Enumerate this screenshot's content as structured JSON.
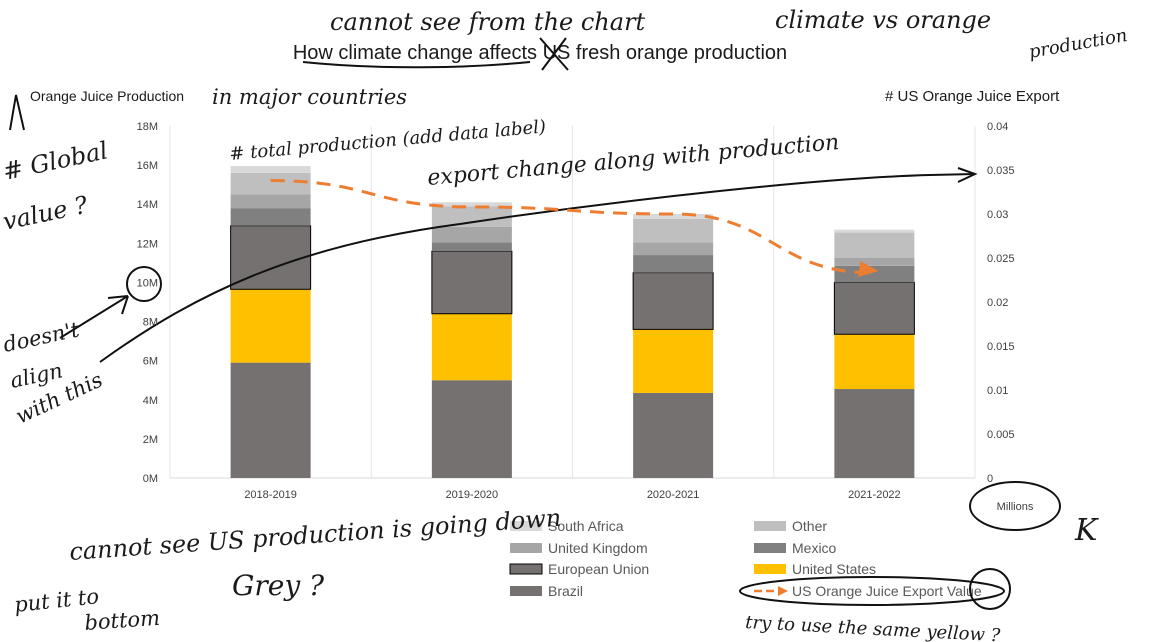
{
  "chart_data": {
    "type": "bar",
    "stacked": true,
    "title": "How climate change affects US fresh orange production",
    "y_left_title": "Orange Juice Production",
    "y_right_title": "# US Orange Juice Export",
    "y_right_unit": "Millions",
    "categories": [
      "2018-2019",
      "2019-2020",
      "2020-2021",
      "2021-2022"
    ],
    "ylim": [
      0,
      18
    ],
    "y2lim": [
      0,
      0.04
    ],
    "y_ticks": [
      "0M",
      "2M",
      "4M",
      "6M",
      "8M",
      "10M",
      "12M",
      "14M",
      "16M",
      "18M"
    ],
    "y2_ticks": [
      "0",
      "0.005",
      "0.01",
      "0.015",
      "0.02",
      "0.025",
      "0.03",
      "0.035",
      "0.04"
    ],
    "series": [
      {
        "name": "Brazil",
        "color": "#767171",
        "values": [
          5.9,
          5.0,
          4.35,
          4.55
        ]
      },
      {
        "name": "United States",
        "color": "#FFC000",
        "values": [
          3.75,
          3.4,
          3.25,
          2.8
        ]
      },
      {
        "name": "European Union",
        "color": "#767171",
        "outlined": true,
        "values": [
          3.25,
          3.2,
          2.9,
          2.65
        ]
      },
      {
        "name": "Mexico",
        "color": "#808080",
        "values": [
          0.9,
          0.45,
          0.9,
          0.85
        ]
      },
      {
        "name": "United Kingdom",
        "color": "#A6A6A6",
        "values": [
          0.7,
          0.8,
          0.65,
          0.4
        ]
      },
      {
        "name": "Other",
        "color": "#BFBFBF",
        "values": [
          1.1,
          1.05,
          1.2,
          1.3
        ]
      },
      {
        "name": "South Africa",
        "color": "#D9D9D9",
        "values": [
          0.35,
          0.2,
          0.25,
          0.15
        ]
      }
    ],
    "line_series": {
      "name": "US Orange Juice Export Value",
      "color": "#ED7D31",
      "dashed": true,
      "axis": "right",
      "values": [
        0.0338,
        0.0308,
        0.03,
        0.0233
      ]
    },
    "legend_order": [
      "South Africa",
      "Other",
      "United Kingdom",
      "Mexico",
      "European Union",
      "United States",
      "Brazil",
      "US Orange Juice Export Value"
    ],
    "legend_position": "bottom"
  },
  "annotations": {
    "top_1": "cannot see from the chart",
    "top_2": "climate vs orange",
    "top_3": "production",
    "left_title_note": "in major countries",
    "total_note": "# total production (add data label)",
    "export_note": "export change along with production",
    "global_1": "# Global",
    "global_2": "value ?",
    "doesnt_1": "doesn't",
    "doesnt_2": "align",
    "doesnt_3": "with this",
    "bottom_1": "cannot see US production is going down",
    "put_1": "put it to",
    "put_2": "bottom",
    "grey": "Grey ?",
    "k": "K",
    "yellow": "try to use the same yellow ?"
  }
}
